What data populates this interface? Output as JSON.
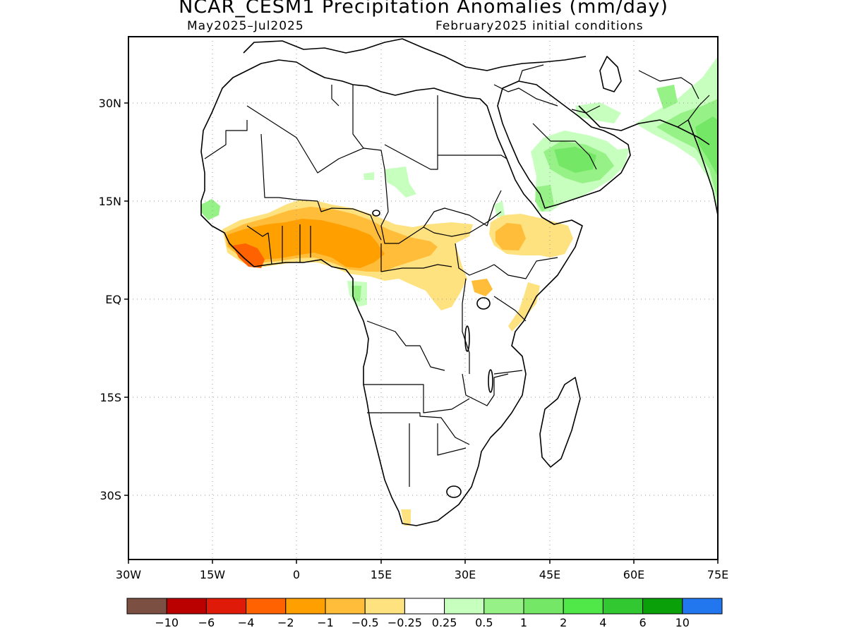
{
  "title": "NCAR_CESM1 Precipitation Anomalies (mm/day)",
  "valid_period": "May2025–Jul2025",
  "init_conditions": "February2025 initial conditions",
  "latitude_ticks": [
    "30N",
    "15N",
    "EQ",
    "15S",
    "30S"
  ],
  "longitude_ticks": [
    "30W",
    "15W",
    "0",
    "15E",
    "30E",
    "45E",
    "60E",
    "75E"
  ],
  "colorbar": {
    "colors": [
      "#7b5043",
      "#bb0000",
      "#e01a08",
      "#ff6200",
      "#ff9f00",
      "#ffbd39",
      "#ffe280",
      "#ffffff",
      "#c7ffbe",
      "#96f286",
      "#74e866",
      "#50e849",
      "#32c832",
      "#0aa00a",
      "#2277ee"
    ],
    "labels": [
      "−10",
      "−6",
      "−4",
      "−2",
      "−1",
      "−0.5",
      "−0.25",
      "0.25",
      "0.5",
      "1",
      "2",
      "4",
      "6",
      "10"
    ]
  },
  "legend_colors": {
    "dry_strong": "#ff9f00",
    "dry_moderate": "#ffbd39",
    "dry_weak": "#ffe280",
    "dry_severe": "#ff6200",
    "wet_weak": "#c7ffbe",
    "wet_moderate": "#96f286",
    "wet_strong": "#74e866"
  }
}
